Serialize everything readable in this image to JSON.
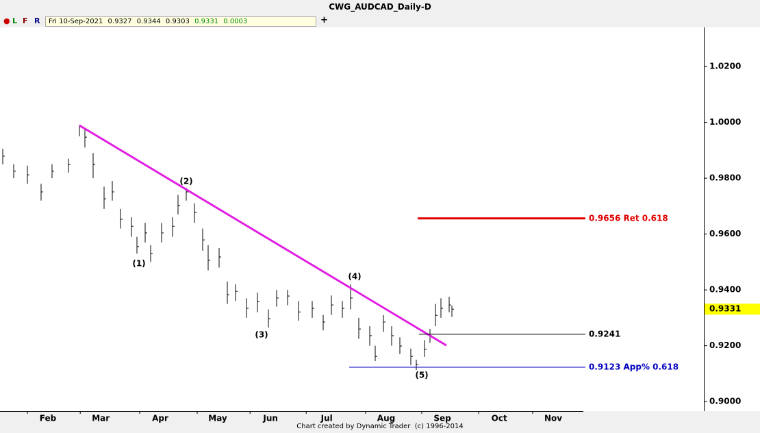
{
  "header": {
    "title": "CWG_AUDCAD_Daily-D",
    "buttons": [
      "L",
      "F",
      "R"
    ],
    "info": [
      "Fri 10-Sep-2021",
      "0.9327",
      "0.9344",
      "0.9303",
      "0.9331",
      "0.0003"
    ],
    "add": "+"
  },
  "footer": "Chart created by Dynamic Trader  (c) 1996-2014",
  "chart_data": {
    "type": "ohlc",
    "x": [
      1,
      5,
      10,
      15,
      19,
      25,
      29,
      31,
      34,
      38,
      41,
      44,
      48,
      50,
      53,
      55,
      59,
      63,
      65,
      68,
      71,
      74,
      76,
      80,
      83,
      86,
      90,
      94,
      98,
      101,
      105,
      109,
      114,
      118,
      121,
      125,
      128,
      131,
      135,
      137,
      140,
      143,
      146,
      150,
      152,
      155,
      157,
      159,
      161,
      164,
      165
    ],
    "high": [
      0.9905,
      0.985,
      0.9845,
      0.978,
      0.985,
      0.987,
      0.999,
      0.9975,
      0.989,
      0.977,
      0.979,
      0.969,
      0.966,
      0.959,
      0.964,
      0.956,
      0.964,
      0.966,
      0.974,
      0.9765,
      0.971,
      0.962,
      0.956,
      0.955,
      0.943,
      0.942,
      0.937,
      0.939,
      0.933,
      0.94,
      0.94,
      0.936,
      0.936,
      0.931,
      0.938,
      0.936,
      0.942,
      0.93,
      0.927,
      0.92,
      0.931,
      0.927,
      0.923,
      0.919,
      0.915,
      0.922,
      0.926,
      0.935,
      0.937,
      0.9375,
      0.9344
    ],
    "low": [
      0.985,
      0.98,
      0.978,
      0.972,
      0.98,
      0.982,
      0.995,
      0.991,
      0.98,
      0.969,
      0.972,
      0.962,
      0.959,
      0.953,
      0.957,
      0.95,
      0.957,
      0.959,
      0.967,
      0.972,
      0.964,
      0.954,
      0.947,
      0.948,
      0.935,
      0.936,
      0.93,
      0.932,
      0.9265,
      0.934,
      0.9345,
      0.929,
      0.93,
      0.9255,
      0.931,
      0.93,
      0.933,
      0.9225,
      0.92,
      0.9145,
      0.925,
      0.92,
      0.917,
      0.913,
      0.9113,
      0.916,
      0.921,
      0.927,
      0.93,
      0.932,
      0.9303
    ],
    "close": [
      0.9879,
      0.9825,
      0.9812,
      0.9751,
      0.9825,
      0.9849,
      0.9984,
      0.9947,
      0.9849,
      0.9726,
      0.9751,
      0.9653,
      0.9628,
      0.9555,
      0.9604,
      0.953,
      0.9604,
      0.9628,
      0.9702,
      0.9751,
      0.9677,
      0.9579,
      0.9506,
      0.9518,
      0.9383,
      0.9395,
      0.9334,
      0.9358,
      0.9297,
      0.9371,
      0.9378,
      0.9321,
      0.9334,
      0.9285,
      0.9346,
      0.9334,
      0.9371,
      0.926,
      0.9236,
      0.9162,
      0.9285,
      0.9236,
      0.9199,
      0.9162,
      0.9133,
      0.9187,
      0.9236,
      0.9309,
      0.9334,
      0.9346,
      0.9331
    ],
    "color": "#000000",
    "xlim": [
      0,
      257
    ],
    "xticks": [
      {
        "value": 17.5,
        "label": "Feb"
      },
      {
        "value": 36.8,
        "label": "Mar"
      },
      {
        "value": 58.5,
        "label": "Apr"
      },
      {
        "value": 79.5,
        "label": "May"
      },
      {
        "value": 98.8,
        "label": "Jun"
      },
      {
        "value": 119.3,
        "label": "Jul"
      },
      {
        "value": 141,
        "label": "Aug"
      },
      {
        "value": 161.5,
        "label": "Sep"
      },
      {
        "value": 182.3,
        "label": "Oct"
      },
      {
        "value": 202,
        "label": "Nov"
      }
    ],
    "ylim": [
      0.8966,
      1.034
    ],
    "yticks": [
      {
        "value": 0.9,
        "label": "0.9000"
      },
      {
        "value": 0.92,
        "label": "0.9200"
      },
      {
        "value": 0.94,
        "label": "0.9400"
      },
      {
        "value": 0.96,
        "label": "0.9600"
      },
      {
        "value": 0.98,
        "label": "0.9800"
      },
      {
        "value": 1.0,
        "label": "1.0000"
      },
      {
        "value": 1.02,
        "label": "1.0200"
      }
    ],
    "last_price": {
      "value": 0.9331,
      "label": "0.9331",
      "color": "#ffff00"
    },
    "trendline": {
      "x": [
        29,
        163
      ],
      "y": [
        0.9989,
        0.9201
      ],
      "color": "#e020e0"
    },
    "levels": [
      {
        "value": 0.9656,
        "label": "0.9656 Ret 0.618",
        "color": "#e00000",
        "start": 152.5,
        "end": 213.75
      },
      {
        "value": 0.9241,
        "label": "0.9241",
        "color": "#000000",
        "start": 153,
        "end": 213.75
      },
      {
        "value": 0.9123,
        "label": "0.9123 App% 0.618",
        "color": "#0000c0",
        "start": 127.5,
        "end": 213.75
      }
    ],
    "annotations": [
      {
        "text": "(1)",
        "x": 50.75,
        "y": 0.9493
      },
      {
        "text": "(2)",
        "x": 68,
        "y": 0.9788
      },
      {
        "text": "(3)",
        "x": 95.5,
        "y": 0.9238
      },
      {
        "text": "(4)",
        "x": 129.5,
        "y": 0.9447
      },
      {
        "text": "(5)",
        "x": 154,
        "y": 0.9093
      }
    ]
  }
}
